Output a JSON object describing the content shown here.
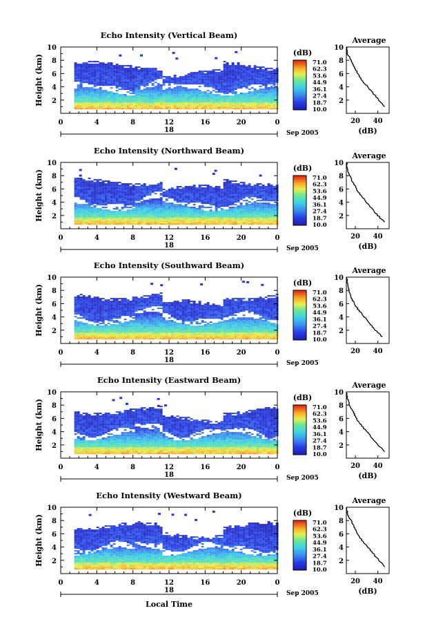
{
  "chart_data": [
    {
      "type": "heatmap",
      "title": "Echo Intensity (Vertical Beam)",
      "ylabel": "Height (km)",
      "ylim": [
        0,
        10
      ],
      "xlim": [
        0,
        24
      ],
      "x_ticks": [
        "0",
        "4",
        "8",
        "12",
        "16",
        "20",
        "0"
      ],
      "y_ticks": [
        "2",
        "4",
        "6",
        "8",
        "10"
      ],
      "date_label": "18",
      "date_suffix": "Sep 2005",
      "colorbar": {
        "unit": "(dB)",
        "ticks": [
          "71.0",
          "62.3",
          "53.6",
          "44.9",
          "36.1",
          "27.4",
          "18.7",
          "10.0"
        ],
        "range": [
          10.0,
          71.0
        ]
      },
      "average": {
        "title": "Average",
        "xlabel": "(dB)",
        "x_ticks": [
          "20",
          "40"
        ],
        "xlim": [
          12,
          50
        ],
        "profile": [
          [
            10,
            12
          ],
          [
            9,
            13
          ],
          [
            8,
            16
          ],
          [
            7,
            19
          ],
          [
            6,
            22
          ],
          [
            5,
            26
          ],
          [
            4,
            31
          ],
          [
            3,
            36
          ],
          [
            2,
            41
          ],
          [
            1,
            46
          ]
        ]
      }
    },
    {
      "type": "heatmap",
      "title": "Echo Intensity (Northward Beam)",
      "ylabel": "Height (km)",
      "ylim": [
        0,
        10
      ],
      "xlim": [
        0,
        24
      ],
      "x_ticks": [
        "0",
        "4",
        "8",
        "12",
        "16",
        "20",
        "0"
      ],
      "y_ticks": [
        "2",
        "4",
        "6",
        "8",
        "10"
      ],
      "date_label": "18",
      "date_suffix": "Sep 2005",
      "colorbar": {
        "unit": "(dB)",
        "ticks": [
          "71.0",
          "62.3",
          "53.6",
          "44.9",
          "36.1",
          "27.4",
          "18.7",
          "10.0"
        ],
        "range": [
          10.0,
          71.0
        ]
      },
      "average": {
        "title": "Average",
        "xlabel": "(dB)",
        "x_ticks": [
          "20",
          "40"
        ],
        "xlim": [
          12,
          50
        ],
        "profile": [
          [
            10,
            12
          ],
          [
            9,
            13
          ],
          [
            8,
            15
          ],
          [
            7,
            18
          ],
          [
            6,
            21
          ],
          [
            5,
            25
          ],
          [
            4,
            30
          ],
          [
            3,
            35
          ],
          [
            2,
            40
          ],
          [
            1,
            46
          ]
        ]
      }
    },
    {
      "type": "heatmap",
      "title": "Echo Intensity (Southward Beam)",
      "ylabel": "Height (km)",
      "ylim": [
        0,
        10
      ],
      "xlim": [
        0,
        24
      ],
      "x_ticks": [
        "0",
        "4",
        "8",
        "12",
        "16",
        "20",
        "0"
      ],
      "y_ticks": [
        "2",
        "4",
        "6",
        "8",
        "10"
      ],
      "date_label": "18",
      "date_suffix": "Sep 2005",
      "colorbar": {
        "unit": "(dB)",
        "ticks": [
          "71.0",
          "62.3",
          "53.6",
          "44.9",
          "36.1",
          "27.4",
          "18.7",
          "10.0"
        ],
        "range": [
          10.0,
          71.0
        ]
      },
      "average": {
        "title": "Average",
        "xlabel": "",
        "x_ticks": [
          "20",
          "40"
        ],
        "xlim": [
          12,
          50
        ],
        "profile": [
          [
            10,
            12
          ],
          [
            9,
            13
          ],
          [
            8,
            14
          ],
          [
            7,
            16
          ],
          [
            6,
            19
          ],
          [
            5,
            23
          ],
          [
            4,
            28
          ],
          [
            3,
            33
          ],
          [
            2,
            38
          ],
          [
            1,
            44
          ]
        ]
      }
    },
    {
      "type": "heatmap",
      "title": "Echo Intensity (Eastward Beam)",
      "ylabel": "Height (km)",
      "ylim": [
        0,
        10
      ],
      "xlim": [
        0,
        24
      ],
      "x_ticks": [
        "0",
        "4",
        "8",
        "12",
        "16",
        "20",
        "0"
      ],
      "y_ticks": [
        "2",
        "4",
        "6",
        "8",
        "10"
      ],
      "date_label": "18",
      "date_suffix": "Sep 2005",
      "colorbar": {
        "unit": "(dB)",
        "ticks": [
          "71.0",
          "62.3",
          "53.6",
          "44.9",
          "36.1",
          "27.4",
          "18.7",
          "10.0"
        ],
        "range": [
          10.0,
          71.0
        ]
      },
      "average": {
        "title": "Average",
        "xlabel": "(dB)",
        "x_ticks": [
          "20",
          "40"
        ],
        "xlim": [
          12,
          50
        ],
        "profile": [
          [
            10,
            12
          ],
          [
            9,
            13
          ],
          [
            8,
            15
          ],
          [
            7,
            18
          ],
          [
            6,
            21
          ],
          [
            5,
            25
          ],
          [
            4,
            30
          ],
          [
            3,
            35
          ],
          [
            2,
            40
          ],
          [
            1,
            46
          ]
        ]
      }
    },
    {
      "type": "heatmap",
      "title": "Echo Intensity (Westward Beam)",
      "ylabel": "Height (km)",
      "ylim": [
        0,
        10
      ],
      "xlim": [
        0,
        24
      ],
      "x_ticks": [
        "0",
        "4",
        "8",
        "12",
        "16",
        "20",
        "0"
      ],
      "y_ticks": [
        "2",
        "4",
        "6",
        "8",
        "10"
      ],
      "date_label": "18",
      "date_suffix": "Sep 2005",
      "xlabel": "Local Time",
      "colorbar": {
        "unit": "(dB)",
        "ticks": [
          "71.0",
          "62.3",
          "53.6",
          "44.9",
          "36.1",
          "27.4",
          "18.7",
          "10.0"
        ],
        "range": [
          10.0,
          71.0
        ]
      },
      "average": {
        "title": "Average",
        "xlabel": "(dB)",
        "x_ticks": [
          "20",
          "40"
        ],
        "xlim": [
          12,
          50
        ],
        "profile": [
          [
            10,
            12
          ],
          [
            9,
            13
          ],
          [
            8,
            16
          ],
          [
            7,
            19
          ],
          [
            6,
            22
          ],
          [
            5,
            26
          ],
          [
            4,
            31
          ],
          [
            3,
            36
          ],
          [
            2,
            41
          ],
          [
            1,
            46
          ]
        ]
      }
    }
  ]
}
